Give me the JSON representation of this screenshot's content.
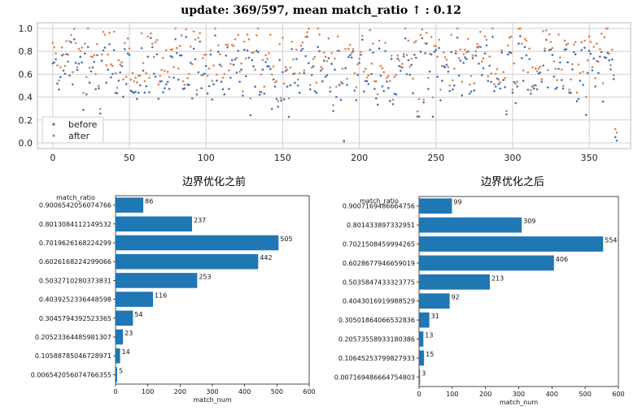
{
  "title": "update: 369/597, mean match_ratio ↑ : 0.12",
  "colors": {
    "before": "#4c72b0",
    "after": "#dd8452",
    "bar": "#1f77b4",
    "grid": "#d0d0d0"
  },
  "chart_data": [
    {
      "type": "scatter",
      "xlim": [
        -10,
        377
      ],
      "ylim": [
        -0.05,
        1.05
      ],
      "xticks": [
        0,
        50,
        100,
        150,
        200,
        250,
        300,
        350
      ],
      "yticks": [
        0.0,
        0.2,
        0.4,
        0.6,
        0.8,
        1.0
      ],
      "grid": true,
      "legend_position": "lower-left",
      "n_points": 369,
      "series": [
        {
          "name": "before",
          "color": "#4c72b0"
        },
        {
          "name": "after",
          "color": "#dd8452"
        }
      ]
    },
    {
      "type": "bar",
      "orientation": "horizontal",
      "title": "边界优化之前",
      "ylabel": "match_ratio",
      "xlabel": "match_num",
      "xlim": [
        0,
        600
      ],
      "xticks": [
        0,
        100,
        200,
        300,
        400,
        500,
        600
      ],
      "categories": [
        "0.9006542056074766",
        "0.8013084112149532",
        "0.7019626168224299",
        "0.6026168224299066",
        "0.5032710280373831",
        "0.4039252336448598",
        "0.3045794392523365",
        "0.20523364485981307",
        "0.10588785046728971",
        "0.006542056074766355"
      ],
      "values": [
        86,
        237,
        505,
        442,
        253,
        116,
        54,
        23,
        14,
        5
      ]
    },
    {
      "type": "bar",
      "orientation": "horizontal",
      "title": "边界优化之后",
      "ylabel": "match_ratio",
      "xlabel": "match_num",
      "xlim": [
        0,
        600
      ],
      "xticks": [
        0,
        100,
        200,
        300,
        400,
        500,
        600
      ],
      "categories": [
        "0.9007169486664756",
        "0.801433897332951",
        "0.7021508459994265",
        "0.6028677946659019",
        "0.5035847433323775",
        "0.4043016919988529",
        "0.30501864066532836",
        "0.20573558933180386",
        "0.10645253799827933",
        "0.007169486664754803"
      ],
      "values": [
        99,
        309,
        554,
        406,
        213,
        92,
        31,
        13,
        15,
        3
      ]
    }
  ]
}
